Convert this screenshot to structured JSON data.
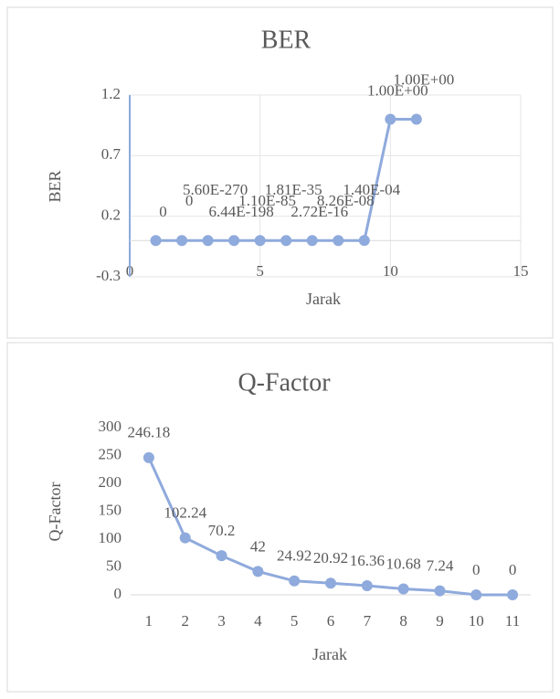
{
  "chart_data": [
    {
      "type": "scatter",
      "title": "BER",
      "x_label": "Jarak",
      "y_label": "BER",
      "x": [
        1,
        2,
        3,
        4,
        5,
        6,
        7,
        8,
        9,
        10,
        11
      ],
      "values": [
        0,
        0,
        5.6e-270,
        6.44e-198,
        1.1e-85,
        1.81e-35,
        2.72e-16,
        8.26e-08,
        0.00014,
        1,
        1
      ],
      "value_labels": [
        "0",
        "0",
        "5.60E-270",
        "6.44E-198",
        "1.10E-85",
        "1.81E-35",
        "2.72E-16",
        "8.26E-08",
        "1.40E-04",
        "1.00E+00",
        "1.00E+00"
      ],
      "color": "#8faadc",
      "xlim": [
        0,
        15
      ],
      "xticks": [
        0,
        5,
        10,
        15
      ],
      "ylim": [
        -0.3,
        1.2
      ],
      "yticks": [
        -0.3,
        0.2,
        0.7,
        1.2
      ],
      "grid": true
    },
    {
      "type": "line",
      "title": "Q-Factor",
      "x_label": "Jarak",
      "y_label": "Q-Factor",
      "categories": [
        "1",
        "2",
        "3",
        "4",
        "5",
        "6",
        "7",
        "8",
        "9",
        "10",
        "11"
      ],
      "values": [
        246.18,
        102.24,
        70.2,
        42,
        24.92,
        20.92,
        16.36,
        10.68,
        7.24,
        0,
        0
      ],
      "color": "#8faadc",
      "ylim": [
        0,
        300
      ],
      "yticks": [
        0,
        50,
        100,
        150,
        200,
        250,
        300
      ],
      "grid": false
    }
  ]
}
